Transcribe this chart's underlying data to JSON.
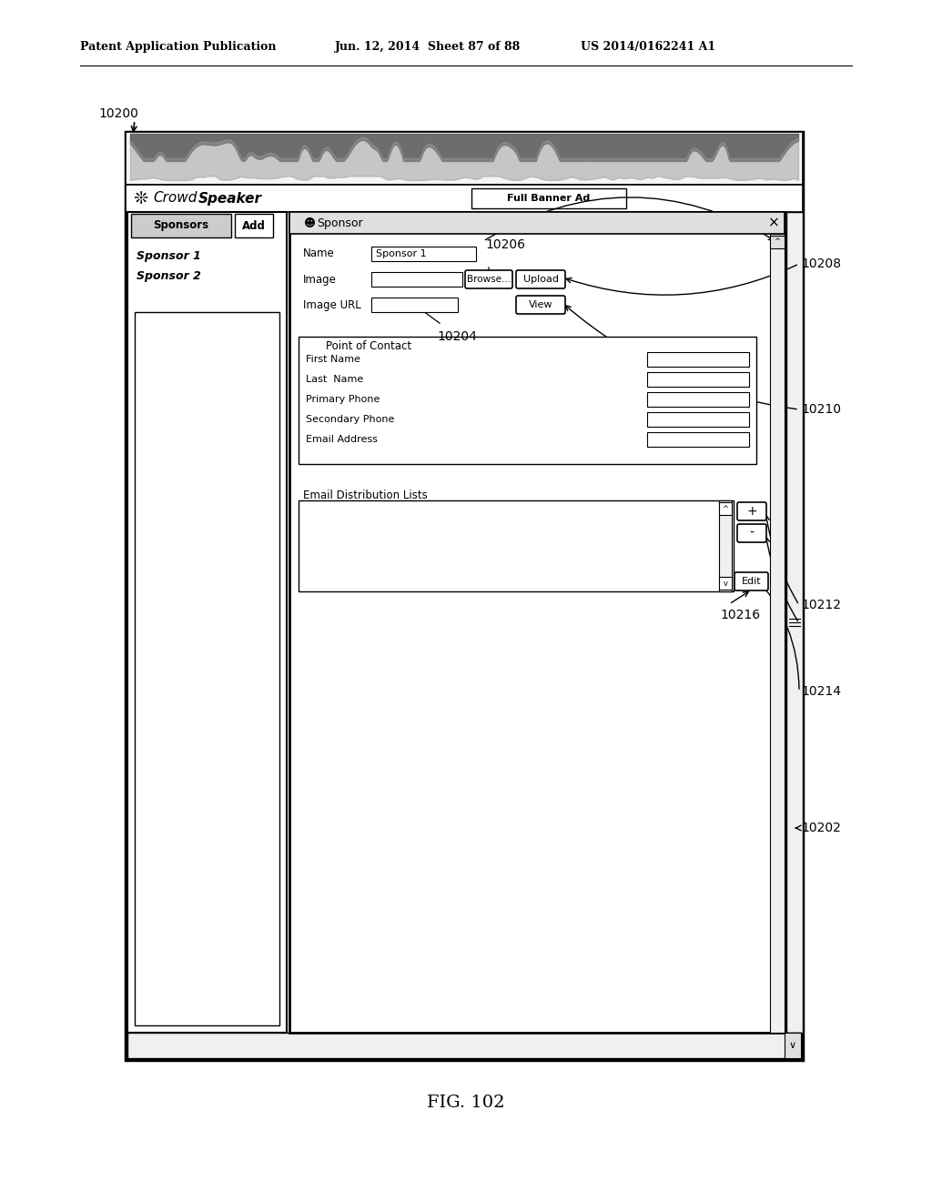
{
  "bg_color": "#ffffff",
  "header_text_left": "Patent Application Publication",
  "header_text_mid": "Jun. 12, 2014  Sheet 87 of 88",
  "header_text_right": "US 2014/0162241 A1",
  "figure_label": "FIG. 102",
  "label_10200": "10200",
  "label_10202": "10202",
  "label_10204": "10204",
  "label_10206": "10206",
  "label_10208": "10208",
  "label_10210": "10210",
  "label_10212": "10212",
  "label_10214": "10214",
  "label_10216": "10216",
  "crowdspeaker_text": "CrowdSpeaker",
  "sponsor_dialog_title": "Sponsor",
  "full_banner_ad": "Full Banner Ad",
  "sponsors_label": "Sponsors",
  "add_btn": "Add",
  "sponsor1_text": "Sponsor 1",
  "sponsor2_text": "Sponsor 2",
  "name_label": "Name",
  "image_label": "Image",
  "image_url_label": "Image URL",
  "browse_btn": "Browse...",
  "upload_btn": "Upload",
  "view_btn": "View",
  "point_of_contact": "Point of Contact",
  "first_name": "First Name",
  "last_name": "Last  Name",
  "primary_phone": "Primary Phone",
  "secondary_phone": "Secondary Phone",
  "email_address": "Email Address",
  "email_dist_lists": "Email Distribution Lists"
}
